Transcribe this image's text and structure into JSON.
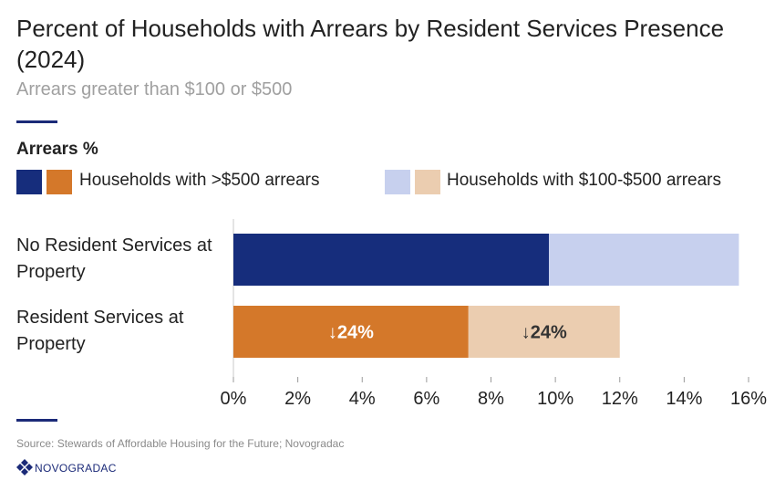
{
  "title": "Percent of Households with Arrears by Resident Services Presence (2024)",
  "subtitle": "Arrears greater than $100 or $500",
  "legend": {
    "title": "Arrears %",
    "items": [
      {
        "label": "Households with >$500 arrears",
        "colors": [
          "#162d7c",
          "#d4782a"
        ]
      },
      {
        "label": "Households with $100-$500 arrears",
        "colors": [
          "#c7d0ee",
          "#ebcdb0"
        ]
      }
    ]
  },
  "source": "Source: Stewards of Affordable Housing for the Future; Novogradac",
  "brand": "NOVOGRADAC",
  "chart_data": {
    "type": "bar",
    "orientation": "horizontal",
    "stacked": true,
    "categories": [
      "No Resident Services at Property",
      "Resident Services at Property"
    ],
    "series": [
      {
        "name": "Households with >$500 arrears",
        "values": [
          9.8,
          7.3
        ],
        "colors": [
          "#162d7c",
          "#d4782a"
        ]
      },
      {
        "name": "Households with $100-$500 arrears",
        "values": [
          5.9,
          4.7
        ],
        "colors": [
          "#c7d0ee",
          "#ebcdb0"
        ]
      }
    ],
    "annotations": [
      {
        "category": "Resident Services at Property",
        "series": "Households with >$500 arrears",
        "text": "↓24%"
      },
      {
        "category": "Resident Services at Property",
        "series": "Households with $100-$500 arrears",
        "text": "↓24%"
      }
    ],
    "xlim": [
      0,
      16
    ],
    "xticks": [
      "0%",
      "2%",
      "4%",
      "6%",
      "8%",
      "10%",
      "12%",
      "14%",
      "16%"
    ],
    "grid": false
  }
}
